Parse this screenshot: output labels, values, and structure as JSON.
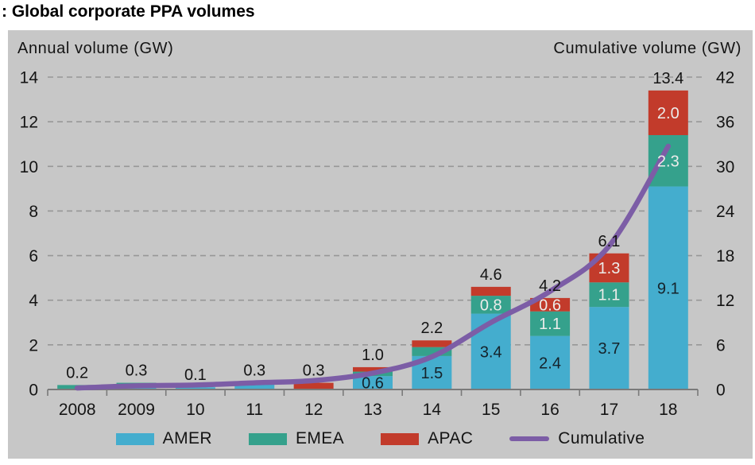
{
  "title": ": Global corporate PPA volumes",
  "legend": [
    {
      "label": "AMER",
      "type": "swatch",
      "color": "#44adce"
    },
    {
      "label": "EMEA",
      "type": "swatch",
      "color": "#35a18c"
    },
    {
      "label": "APAC",
      "type": "swatch",
      "color": "#c23b2b"
    },
    {
      "label": "Cumulative",
      "type": "line",
      "color": "#7c5da6"
    }
  ],
  "chart_data": {
    "type": "bar+line",
    "title": ": Global corporate PPA volumes",
    "categories": [
      "2008",
      "2009",
      "10",
      "11",
      "12",
      "13",
      "14",
      "15",
      "16",
      "17",
      "18"
    ],
    "series": [
      {
        "name": "AMER",
        "color": "#44adce",
        "values": [
          0,
          0.1,
          0.1,
          0.3,
          0,
          0.6,
          1.5,
          3.4,
          2.4,
          3.7,
          9.1
        ],
        "labels": [
          null,
          null,
          null,
          null,
          null,
          "0.6",
          "1.5",
          "3.4",
          "2.4",
          "3.7",
          "9.1"
        ],
        "label_color": "#15232b"
      },
      {
        "name": "EMEA",
        "color": "#35a18c",
        "values": [
          0.2,
          0.2,
          0,
          0,
          0,
          0.2,
          0.4,
          0.8,
          1.1,
          1.1,
          2.3
        ],
        "labels": [
          null,
          null,
          null,
          null,
          null,
          null,
          null,
          "0.8",
          "1.1",
          "1.1",
          "2.3"
        ],
        "label_color": "#ececea"
      },
      {
        "name": "APAC",
        "color": "#c23b2b",
        "values": [
          0,
          0,
          0,
          0,
          0.3,
          0.2,
          0.3,
          0.4,
          0.6,
          1.3,
          2.0
        ],
        "labels": [
          null,
          null,
          null,
          null,
          null,
          null,
          null,
          null,
          "0.6",
          "1.3",
          "2.0"
        ],
        "label_color": "#ececea"
      }
    ],
    "total_labels": [
      "0.2",
      "0.3",
      "0.1",
      "0.3",
      "0.3",
      "1.0",
      "2.2",
      "4.6",
      "4.2",
      "6.1",
      "13.4"
    ],
    "line_series": {
      "name": "Cumulative",
      "color": "#7c5da6",
      "axis": "right",
      "values": [
        0.2,
        0.5,
        0.6,
        0.9,
        1.2,
        2.2,
        4.4,
        9.0,
        13.2,
        19.3,
        32.7
      ]
    },
    "left_axis": {
      "title": "Annual volume (GW)",
      "ticks": [
        0,
        2,
        4,
        6,
        8,
        10,
        12,
        14
      ],
      "max": 14
    },
    "right_axis": {
      "title": "Cumulative volume (GW)",
      "ticks": [
        0,
        6,
        12,
        18,
        24,
        30,
        36,
        42
      ],
      "max": 42
    },
    "grid": true,
    "legend_position": "bottom",
    "plot_bg": "#c7c7c7",
    "grid_color": "#979797",
    "axis_color": "#7a7a7a",
    "text_color": "#141414"
  }
}
